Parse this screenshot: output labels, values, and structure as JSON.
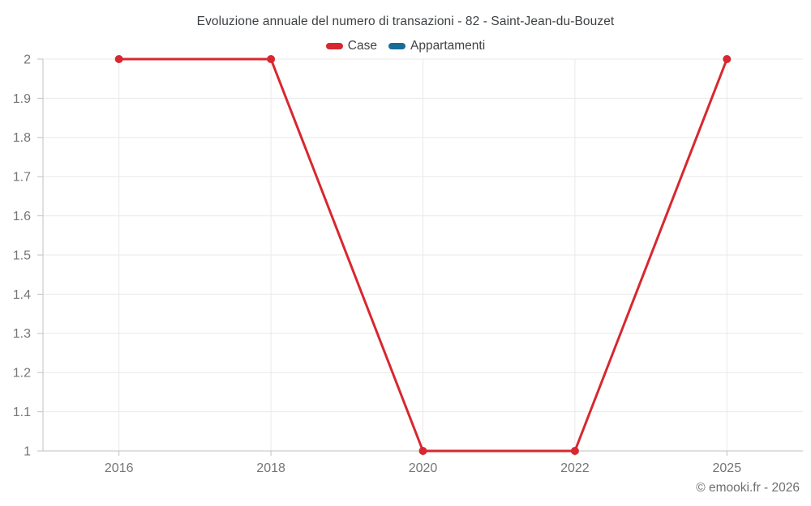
{
  "chart_data": {
    "type": "line",
    "title": "Evoluzione annuale del numero di transazioni - 82 - Saint-Jean-du-Bouzet",
    "categories": [
      "2016",
      "2018",
      "2020",
      "2022",
      "2025"
    ],
    "series": [
      {
        "name": "Case",
        "color": "#d7282f",
        "values": [
          2,
          2,
          1,
          1,
          2
        ]
      },
      {
        "name": "Appartamenti",
        "color": "#186d96",
        "values": []
      }
    ],
    "xlabel": "",
    "ylabel": "",
    "ylim": [
      1,
      2
    ],
    "ytick_step": 0.1,
    "ytick_labels": [
      "1",
      "1.1",
      "1.2",
      "1.3",
      "1.4",
      "1.5",
      "1.6",
      "1.7",
      "1.8",
      "1.9",
      "2"
    ],
    "grid": true,
    "legend_position": "top",
    "copyright": "© emooki.fr - 2026"
  },
  "style": {
    "grid_color": "#e9e9e9",
    "axis_color": "#c2c2c2",
    "tick_label_color": "#757575",
    "title_color": "#3d4043",
    "background": "#ffffff"
  }
}
